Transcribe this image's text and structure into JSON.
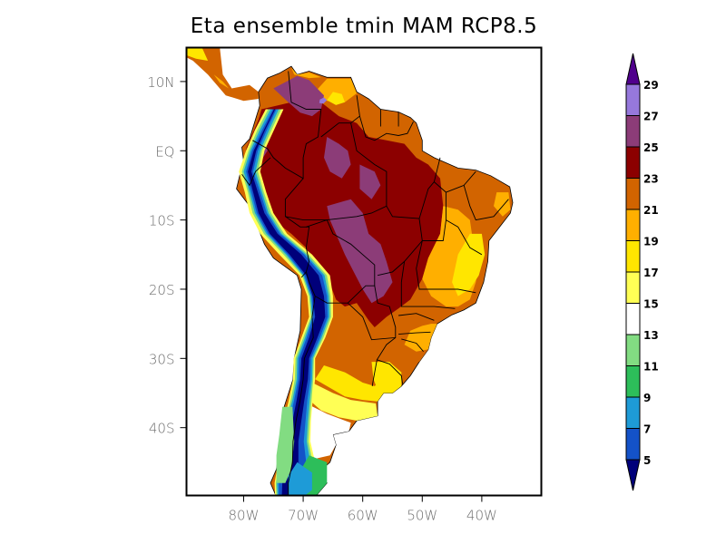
{
  "title": "Eta ensemble tmin MAM RCP8.5",
  "chart_data": {
    "type": "heatmap",
    "title": "Eta ensemble tmin MAM RCP8.5",
    "variable": "tmin",
    "season": "MAM",
    "scenario": "RCP8.5",
    "xlabel": "",
    "ylabel": "",
    "xlim": [
      -89.6,
      -30.0
    ],
    "ylim": [
      -49.8,
      14.9
    ],
    "x_ticks": [
      {
        "value": -80,
        "label": "80W"
      },
      {
        "value": -70,
        "label": "70W"
      },
      {
        "value": -60,
        "label": "60W"
      },
      {
        "value": -50,
        "label": "50W"
      },
      {
        "value": -40,
        "label": "40W"
      }
    ],
    "y_ticks": [
      {
        "value": 10,
        "label": "10N"
      },
      {
        "value": 0,
        "label": "EQ"
      },
      {
        "value": -10,
        "label": "10S"
      },
      {
        "value": -20,
        "label": "20S"
      },
      {
        "value": -30,
        "label": "30S"
      },
      {
        "value": -40,
        "label": "40S"
      }
    ],
    "colorbar": {
      "levels": [
        "5",
        "7",
        "9",
        "11",
        "13",
        "15",
        "17",
        "19",
        "21",
        "23",
        "25",
        "27",
        "29"
      ],
      "colors": [
        "#00007a",
        "#1452c8",
        "#1e9bd7",
        "#2dbe5a",
        "#82dc82",
        "#ffffff",
        "#ffff55",
        "#ffe600",
        "#ffaf00",
        "#d26400",
        "#8c0000",
        "#8c3c78",
        "#9678dc",
        "#50008c"
      ],
      "extend": "both",
      "orientation": "vertical",
      "placement": "right"
    },
    "regions": [
      {
        "name": "amazon-core",
        "class_min": 23,
        "class_max": 25
      },
      {
        "name": "central-brazil-purple",
        "class_min": 25,
        "class_max": 27
      },
      {
        "name": "venezuela-peak",
        "class_min": 27,
        "class_max": 29
      },
      {
        "name": "north-coast-orange",
        "class_min": 21,
        "class_max": 23
      },
      {
        "name": "east-brazil-gold",
        "class_min": 19,
        "class_max": 21
      },
      {
        "name": "southeast-yellow",
        "class_min": 17,
        "class_max": 19
      },
      {
        "name": "pampas-light-yellow",
        "class_min": 15,
        "class_max": 17
      },
      {
        "name": "patagonia-white",
        "class_min": 13,
        "class_max": 15
      },
      {
        "name": "southern-chile-light-green",
        "class_min": 11,
        "class_max": 13
      },
      {
        "name": "patagonia-green",
        "class_min": 9,
        "class_max": 11
      },
      {
        "name": "andes-blue",
        "class_min": 7,
        "class_max": 9
      },
      {
        "name": "andes-dark-blue",
        "class_min": 5,
        "class_max": 7
      },
      {
        "name": "andes-peaks",
        "class_min": null,
        "class_max": 5
      }
    ]
  }
}
